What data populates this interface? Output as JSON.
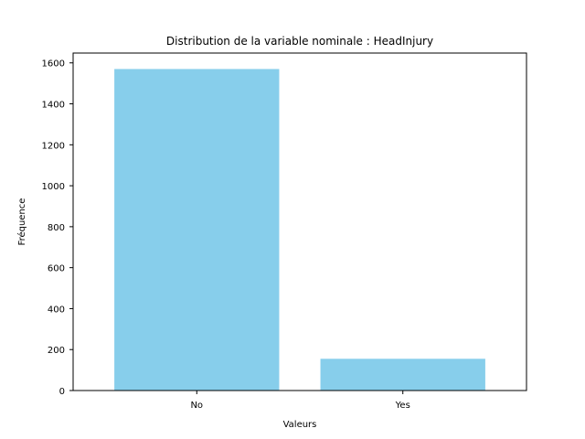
{
  "chart_data": {
    "type": "bar",
    "title": "Distribution de la variable nominale : HeadInjury",
    "xlabel": "Valeurs",
    "ylabel": "Fréquence",
    "categories": [
      "No",
      "Yes"
    ],
    "values": [
      1570,
      155
    ],
    "ylim": [
      0,
      1648
    ],
    "yticks": [
      0,
      200,
      400,
      600,
      800,
      1000,
      1200,
      1400,
      1600
    ],
    "bar_color": "#87ceeb",
    "grid": false,
    "legend": "none"
  }
}
